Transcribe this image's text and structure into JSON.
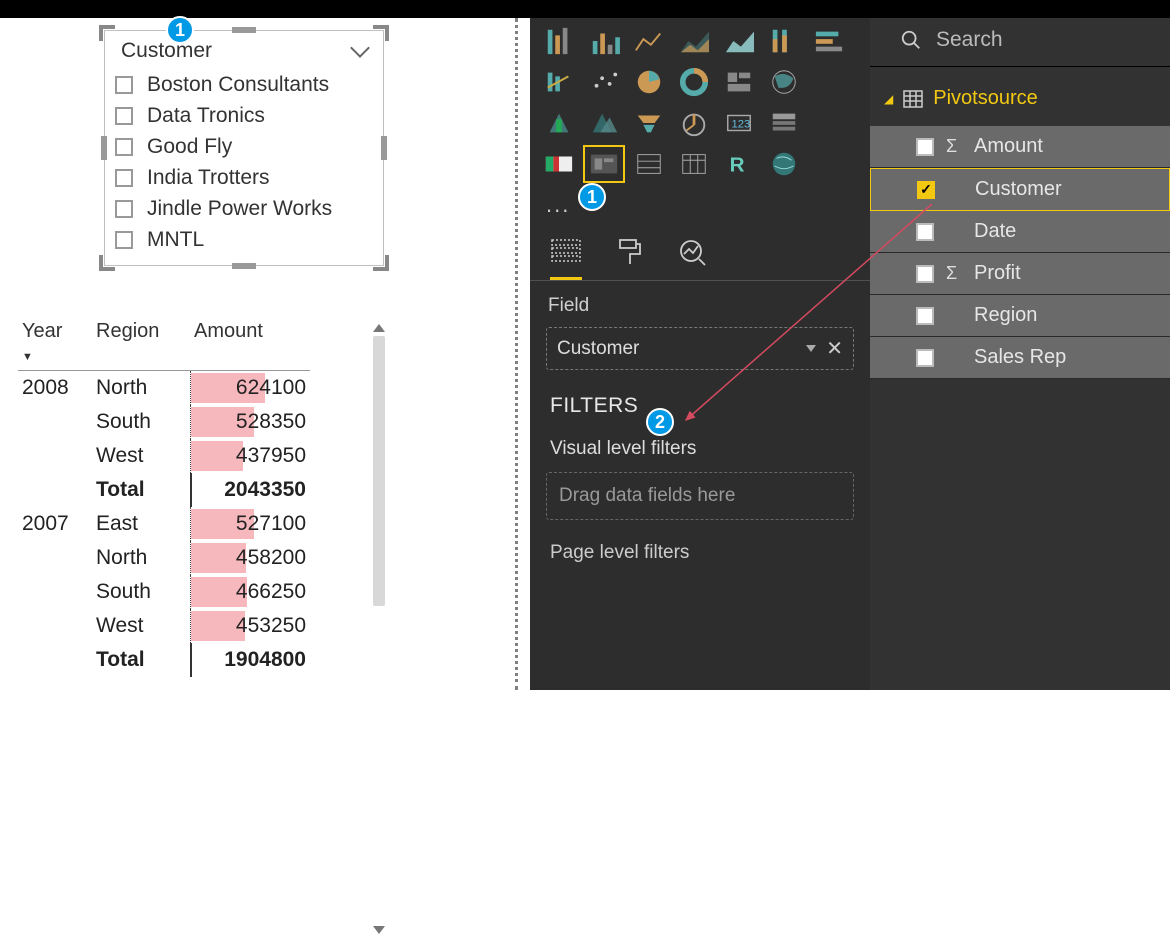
{
  "colors": {
    "accent": "#f2c811",
    "badge": "#0099e5",
    "panel_dark": "#2d2d2d",
    "panel_fields": "#323232",
    "field_row": "#6a6a6a",
    "bar_fill": "#f6b8bd",
    "arrow": "#d44a5f"
  },
  "slicer": {
    "title": "Customer",
    "items": [
      "Boston Consultants",
      "Data Tronics",
      "Good Fly",
      "India Trotters",
      "Jindle Power Works",
      "MNTL"
    ]
  },
  "table": {
    "columns": [
      "Year",
      "Region",
      "Amount"
    ],
    "max_amount": 2043350,
    "rows": [
      {
        "year": "2008",
        "region": "North",
        "amount": 624100,
        "bar_pct": 62,
        "total": false
      },
      {
        "year": "",
        "region": "South",
        "amount": 528350,
        "bar_pct": 53,
        "total": false
      },
      {
        "year": "",
        "region": "West",
        "amount": 437950,
        "bar_pct": 44,
        "total": false
      },
      {
        "year": "",
        "region": "Total",
        "amount": 2043350,
        "bar_pct": 0,
        "total": true
      },
      {
        "year": "2007",
        "region": "East",
        "amount": 527100,
        "bar_pct": 53,
        "total": false
      },
      {
        "year": "",
        "region": "North",
        "amount": 458200,
        "bar_pct": 46,
        "total": false
      },
      {
        "year": "",
        "region": "South",
        "amount": 466250,
        "bar_pct": 47,
        "total": false
      },
      {
        "year": "",
        "region": "West",
        "amount": 453250,
        "bar_pct": 45,
        "total": false
      },
      {
        "year": "",
        "region": "Total",
        "amount": 1904800,
        "bar_pct": 0,
        "total": true
      }
    ]
  },
  "viz": {
    "ellipsis": "...",
    "field_label": "Field",
    "well_value": "Customer",
    "filters_head": "FILTERS",
    "visual_filters": "Visual level filters",
    "drag_hint": "Drag data fields here",
    "page_filters": "Page level filters"
  },
  "fields": {
    "search": "Search",
    "table_name": "Pivotsource",
    "items": [
      {
        "label": "Amount",
        "sigma": true,
        "checked": false
      },
      {
        "label": "Customer",
        "sigma": false,
        "checked": true,
        "selected": true
      },
      {
        "label": "Date",
        "sigma": false,
        "checked": false
      },
      {
        "label": "Profit",
        "sigma": true,
        "checked": false
      },
      {
        "label": "Region",
        "sigma": false,
        "checked": false
      },
      {
        "label": "Sales Rep",
        "sigma": false,
        "checked": false
      }
    ]
  },
  "badges": {
    "one": "1",
    "two": "2"
  }
}
